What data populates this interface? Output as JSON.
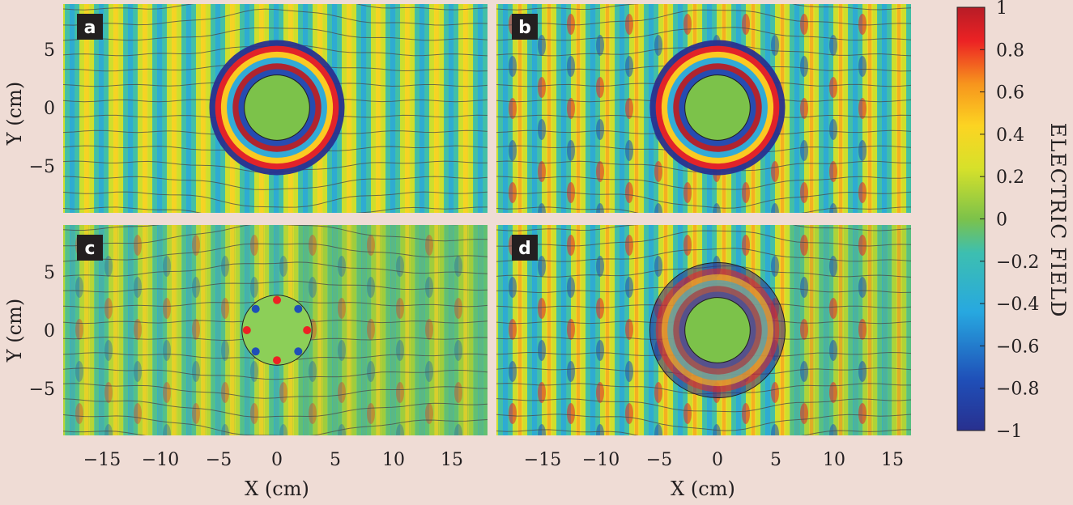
{
  "chart_data": {
    "type": "heatmap",
    "colorbar": {
      "label": "ELECTRIC FIELD",
      "range": [
        -1,
        1
      ],
      "ticks": [
        "1",
        "0.8",
        "0.6",
        "0.4",
        "0.2",
        "0",
        "−0.2",
        "−0.4",
        "−0.6",
        "−0.8",
        "−1"
      ],
      "colormap": "jet"
    },
    "x_axis": {
      "label": "X (cm)",
      "range": [
        -19,
        18
      ],
      "ticks": [
        "−15",
        "−10",
        "−5",
        "0",
        "5",
        "10",
        "15"
      ]
    },
    "y_axis": {
      "label": "Y (cm)",
      "range": [
        -9,
        8.5
      ],
      "ticks": [
        "5",
        "0",
        "−5"
      ]
    },
    "panels": [
      {
        "label": "a",
        "cloak_outer_radius_cm": 5.8,
        "cloak_inner_radius_cm": 2.8
      },
      {
        "label": "b",
        "cloak_outer_radius_cm": 5.8,
        "cloak_inner_radius_cm": 2.8
      },
      {
        "label": "c",
        "cloak_outer_radius_cm": 3.0,
        "cloak_inner_radius_cm": 0
      },
      {
        "label": "d",
        "cloak_outer_radius_cm": 5.8,
        "cloak_inner_radius_cm": 2.8
      }
    ]
  }
}
